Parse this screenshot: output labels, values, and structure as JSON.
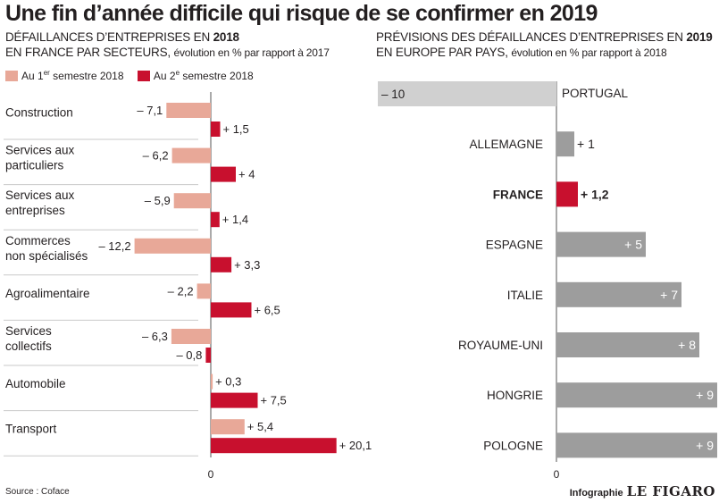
{
  "title": "Une fin d’année difficile qui risque de se confirmer en 2019",
  "left": {
    "heading_line1": "DÉFAILLANCES D’ENTREPRISES EN",
    "heading_year": "2018",
    "heading_line2": "EN FRANCE PAR SECTEURS,",
    "heading_note": "évolution en % par rapport à 2017"
  },
  "right": {
    "heading_line1": "PRÉVISIONS DES DÉFAILLANCES D’ENTREPRISES EN",
    "heading_year": "2019",
    "heading_line2": "EN EUROPE PAR PAYS,",
    "heading_note": "évolution en % par rapport à 2018"
  },
  "legend": {
    "s1_prefix": "Au 1",
    "s1_sup": "er",
    "s1_suffix": " semestre 2018",
    "s2_prefix": "Au 2",
    "s2_sup": "e",
    "s2_suffix": " semestre 2018"
  },
  "source": "Source : Coface",
  "credit": {
    "label": "Infographie",
    "brand": "LE FIGARO"
  },
  "colors": {
    "s1": "#e8a898",
    "s2": "#c8102e",
    "grey": "#9d9d9d",
    "lightgrey": "#d0d0d0",
    "france": "#c8102e"
  },
  "chart_data": [
    {
      "type": "bar",
      "orientation": "horizontal",
      "categories": [
        [
          "Construction"
        ],
        [
          "Services aux",
          "particuliers"
        ],
        [
          "Services aux",
          "entreprises"
        ],
        [
          "Commerces",
          "non spécialisés"
        ],
        [
          "Agroalimentaire"
        ],
        [
          "Services",
          "collectifs"
        ],
        [
          "Automobile"
        ],
        [
          "Transport"
        ]
      ],
      "series": [
        {
          "name": "Au 1er semestre 2018",
          "values": [
            -7.1,
            -6.2,
            -5.9,
            -12.2,
            -2.2,
            -6.3,
            0.3,
            5.4
          ],
          "labels": [
            "– 7,1",
            "– 6,2",
            "– 5,9",
            "– 12,2",
            "– 2,2",
            "– 6,3",
            "+ 0,3",
            "+ 5,4"
          ]
        },
        {
          "name": "Au 2e semestre 2018",
          "values": [
            1.5,
            4,
            1.4,
            3.3,
            6.5,
            -0.8,
            7.5,
            20.1
          ],
          "labels": [
            "+ 1,5",
            "+ 4",
            "+ 1,4",
            "+ 3,3",
            "+ 6,5",
            "– 0,8",
            "+ 7,5",
            "+ 20,1"
          ]
        }
      ],
      "zero_label": "0",
      "grid": false
    },
    {
      "type": "bar",
      "orientation": "horizontal",
      "categories": [
        "PORTUGAL",
        "ALLEMAGNE",
        "FRANCE",
        "ESPAGNE",
        "ITALIE",
        "ROYAUME-UNI",
        "HONGRIE",
        "POLOGNE"
      ],
      "values": [
        -10,
        1,
        1.2,
        5,
        7,
        8,
        9,
        9
      ],
      "labels": [
        "– 10",
        "+ 1",
        "+ 1,2",
        "+ 5",
        "+ 7",
        "+ 8",
        "+ 9",
        "+ 9"
      ],
      "highlight": "FRANCE",
      "zero_label": "0",
      "grid": false
    }
  ]
}
